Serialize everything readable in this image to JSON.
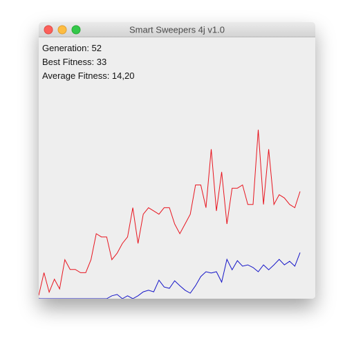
{
  "window": {
    "title": "Smart Sweepers 4j v1.0"
  },
  "stats": [
    "Generation: 52",
    "Best Fitness: 33",
    "Average Fitness: 14,20"
  ],
  "chart_data": {
    "type": "line",
    "series": [
      {
        "color": "#e8141e",
        "values": [
          1,
          8,
          2,
          6,
          3,
          12,
          9,
          9,
          8,
          8,
          12,
          20,
          19,
          19,
          12,
          14,
          17,
          19,
          28,
          17,
          26,
          28,
          27,
          26,
          28,
          28,
          23,
          20,
          23,
          26,
          35,
          35,
          28,
          46,
          27,
          39,
          23,
          34,
          34,
          35,
          29,
          29,
          52,
          29,
          46,
          29,
          32,
          31,
          29,
          28,
          33
        ]
      },
      {
        "color": "#1414c8",
        "values": [
          0,
          0,
          0,
          0,
          0,
          0,
          0,
          0,
          0,
          0,
          0,
          0,
          0,
          0,
          0.9,
          1.3,
          0,
          0.9,
          0,
          0.9,
          2.1,
          2.6,
          2.1,
          5.7,
          3.6,
          3.2,
          5.5,
          4,
          2.6,
          1.7,
          4,
          6.8,
          8.3,
          7.9,
          8.3,
          5.1,
          12.1,
          8.9,
          11.7,
          10,
          10.4,
          9.6,
          8.3,
          10.4,
          8.9,
          10.4,
          12.1,
          10.4,
          11.5,
          10,
          14.2
        ]
      }
    ]
  }
}
